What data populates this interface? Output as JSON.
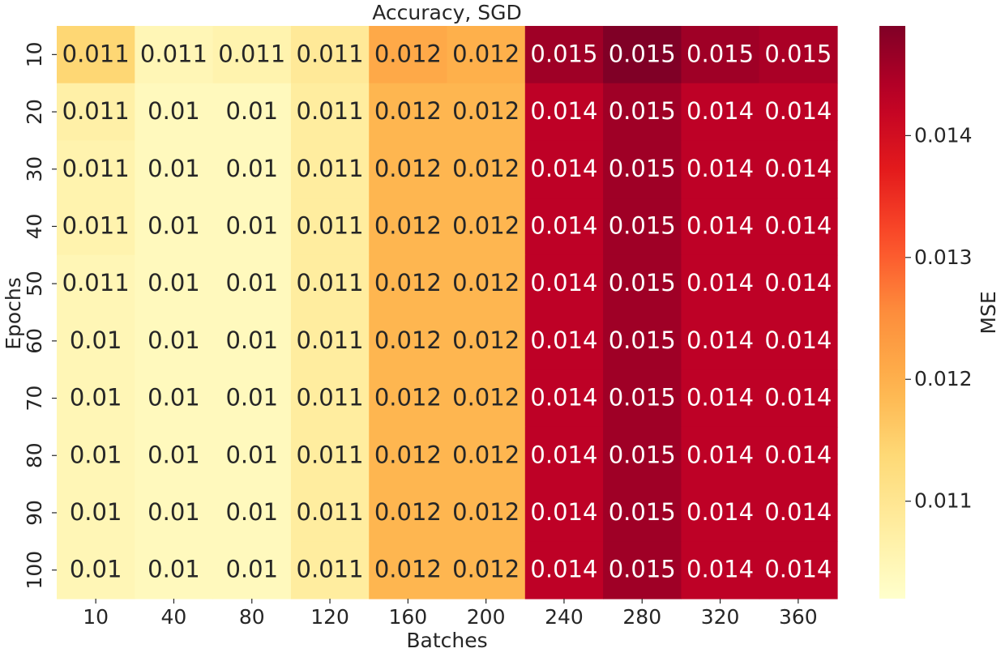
{
  "chart_data": {
    "type": "heatmap",
    "title": "Accuracy, SGD",
    "xlabel": "Batches",
    "ylabel": "Epochs",
    "colorbar_label": "MSE",
    "colormap": "YlOrRd",
    "x": [
      "10",
      "40",
      "80",
      "120",
      "160",
      "200",
      "240",
      "280",
      "320",
      "360"
    ],
    "y": [
      "10",
      "20",
      "30",
      "40",
      "50",
      "60",
      "70",
      "80",
      "90",
      "100"
    ],
    "values": [
      [
        0.0114,
        0.0105,
        0.0106,
        0.0109,
        0.0121,
        0.012,
        0.0146,
        0.0149,
        0.0146,
        0.0145
      ],
      [
        0.0107,
        0.0104,
        0.0104,
        0.0108,
        0.0119,
        0.0119,
        0.0143,
        0.0146,
        0.0143,
        0.0143
      ],
      [
        0.0106,
        0.0104,
        0.0104,
        0.0108,
        0.0119,
        0.0119,
        0.0143,
        0.0146,
        0.0143,
        0.0143
      ],
      [
        0.0106,
        0.0104,
        0.0104,
        0.0108,
        0.0119,
        0.0119,
        0.0143,
        0.0146,
        0.0143,
        0.0143
      ],
      [
        0.0105,
        0.0104,
        0.0104,
        0.0108,
        0.0119,
        0.0119,
        0.0143,
        0.0146,
        0.0143,
        0.0143
      ],
      [
        0.0105,
        0.0104,
        0.0104,
        0.0108,
        0.0119,
        0.0119,
        0.0143,
        0.0146,
        0.0143,
        0.0143
      ],
      [
        0.0105,
        0.0104,
        0.0104,
        0.0108,
        0.0119,
        0.0119,
        0.0143,
        0.0146,
        0.0143,
        0.0143
      ],
      [
        0.0105,
        0.0104,
        0.0104,
        0.0108,
        0.0119,
        0.0119,
        0.0143,
        0.0146,
        0.0143,
        0.0143
      ],
      [
        0.0105,
        0.0104,
        0.0104,
        0.0108,
        0.0119,
        0.0119,
        0.0143,
        0.0146,
        0.0143,
        0.0143
      ],
      [
        0.0105,
        0.0104,
        0.0104,
        0.0108,
        0.0119,
        0.0119,
        0.0143,
        0.0146,
        0.0143,
        0.0143
      ]
    ],
    "annotations": [
      [
        "0.011",
        "0.011",
        "0.011",
        "0.011",
        "0.012",
        "0.012",
        "0.015",
        "0.015",
        "0.015",
        "0.015"
      ],
      [
        "0.011",
        "0.01",
        "0.01",
        "0.011",
        "0.012",
        "0.012",
        "0.014",
        "0.015",
        "0.014",
        "0.014"
      ],
      [
        "0.011",
        "0.01",
        "0.01",
        "0.011",
        "0.012",
        "0.012",
        "0.014",
        "0.015",
        "0.014",
        "0.014"
      ],
      [
        "0.011",
        "0.01",
        "0.01",
        "0.011",
        "0.012",
        "0.012",
        "0.014",
        "0.015",
        "0.014",
        "0.014"
      ],
      [
        "0.011",
        "0.01",
        "0.01",
        "0.011",
        "0.012",
        "0.012",
        "0.014",
        "0.015",
        "0.014",
        "0.014"
      ],
      [
        "0.01",
        "0.01",
        "0.01",
        "0.011",
        "0.012",
        "0.012",
        "0.014",
        "0.015",
        "0.014",
        "0.014"
      ],
      [
        "0.01",
        "0.01",
        "0.01",
        "0.011",
        "0.012",
        "0.012",
        "0.014",
        "0.015",
        "0.014",
        "0.014"
      ],
      [
        "0.01",
        "0.01",
        "0.01",
        "0.011",
        "0.012",
        "0.012",
        "0.014",
        "0.015",
        "0.014",
        "0.014"
      ],
      [
        "0.01",
        "0.01",
        "0.01",
        "0.011",
        "0.012",
        "0.012",
        "0.014",
        "0.015",
        "0.014",
        "0.014"
      ],
      [
        "0.01",
        "0.01",
        "0.01",
        "0.011",
        "0.012",
        "0.012",
        "0.014",
        "0.015",
        "0.014",
        "0.014"
      ]
    ],
    "vmin": 0.0102,
    "vmax": 0.0149,
    "colorbar_ticks": [
      0.011,
      0.012,
      0.013,
      0.014
    ],
    "colorbar_tick_labels": [
      "0.011",
      "0.012",
      "0.013",
      "0.014"
    ]
  }
}
